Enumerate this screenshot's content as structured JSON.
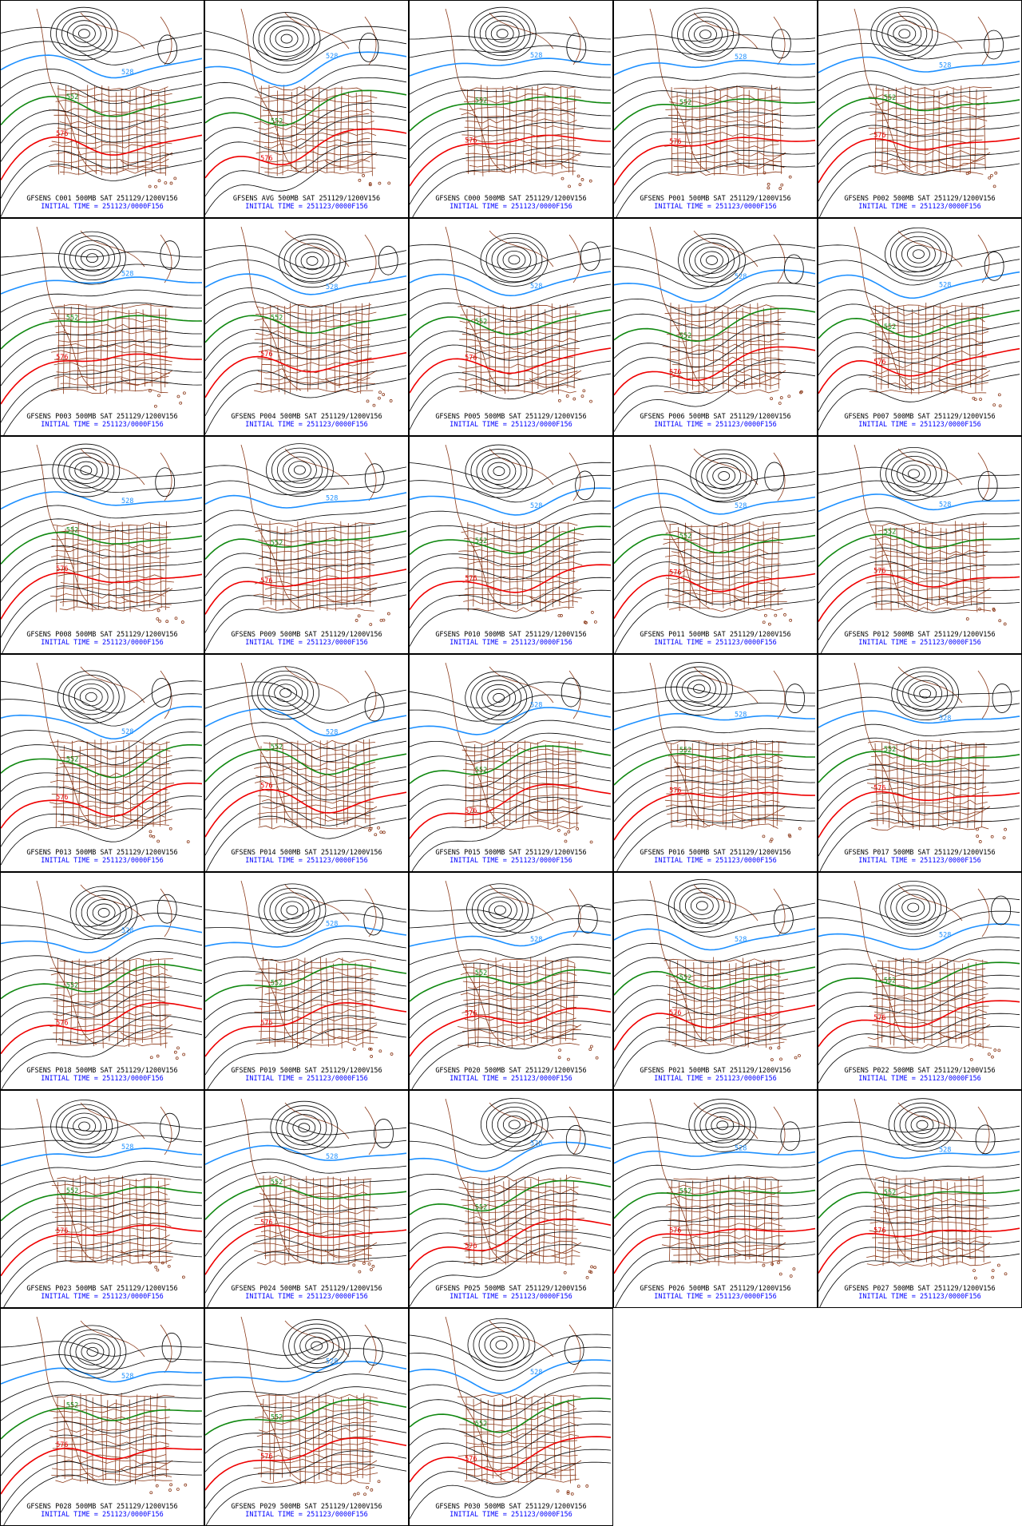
{
  "panels": [
    {
      "label": "GFSENS C001 500MB SAT 251129/1200V156",
      "init": "INITIAL TIME = 251123/0000F156",
      "contour_labels": [
        "528",
        "552",
        "576"
      ]
    },
    {
      "label": "GFSENS AVG 500MB SAT 251129/1200V156",
      "init": "INITIAL TIME = 251123/0000F156",
      "contour_labels": [
        "528",
        "552",
        "576"
      ]
    },
    {
      "label": "GFSENS C000 500MB SAT 251129/1200V156",
      "init": "INITIAL TIME = 251123/0000F156",
      "contour_labels": [
        "528",
        "552",
        "576"
      ]
    },
    {
      "label": "GFSENS P001 500MB SAT 251129/1200V156",
      "init": "INITIAL TIME = 251123/0000F156",
      "contour_labels": [
        "528",
        "552",
        "576"
      ]
    },
    {
      "label": "GFSENS P002 500MB SAT 251129/1200V156",
      "init": "INITIAL TIME = 251123/0000F156",
      "contour_labels": [
        "528",
        "552",
        "576"
      ]
    },
    {
      "label": "GFSENS P003 500MB SAT 251129/1200V156",
      "init": "INITIAL TIME = 251123/0000F156",
      "contour_labels": [
        "528",
        "552",
        "576"
      ]
    },
    {
      "label": "GFSENS P004 500MB SAT 251129/1200V156",
      "init": "INITIAL TIME = 251123/0000F156",
      "contour_labels": [
        "528",
        "552",
        "576"
      ]
    },
    {
      "label": "GFSENS P005 500MB SAT 251129/1200V156",
      "init": "INITIAL TIME = 251123/0000F156",
      "contour_labels": [
        "528",
        "552",
        "576"
      ]
    },
    {
      "label": "GFSENS P006 500MB SAT 251129/1200V156",
      "init": "INITIAL TIME = 251123/0000F156",
      "contour_labels": [
        "528",
        "552",
        "576"
      ]
    },
    {
      "label": "GFSENS P007 500MB SAT 251129/1200V156",
      "init": "INITIAL TIME = 251123/0000F156",
      "contour_labels": [
        "528",
        "552",
        "576"
      ]
    },
    {
      "label": "GFSENS P008 500MB SAT 251129/1200V156",
      "init": "INITIAL TIME = 251123/0000F156",
      "contour_labels": [
        "528",
        "552",
        "576"
      ]
    },
    {
      "label": "GFSENS P009 500MB SAT 251129/1200V156",
      "init": "INITIAL TIME = 251123/0000F156",
      "contour_labels": [
        "528",
        "552",
        "576"
      ]
    },
    {
      "label": "GFSENS P010 500MB SAT 251129/1200V156",
      "init": "INITIAL TIME = 251123/0000F156",
      "contour_labels": [
        "528",
        "552",
        "576"
      ]
    },
    {
      "label": "GFSENS P011 500MB SAT 251129/1200V156",
      "init": "INITIAL TIME = 251123/0000F156",
      "contour_labels": [
        "528",
        "552",
        "576"
      ]
    },
    {
      "label": "GFSENS P012 500MB SAT 251129/1200V156",
      "init": "INITIAL TIME = 251123/0000F156",
      "contour_labels": [
        "528",
        "552",
        "576"
      ]
    },
    {
      "label": "GFSENS P013 500MB SAT 251129/1200V156",
      "init": "INITIAL TIME = 251123/0000F156",
      "contour_labels": [
        "528",
        "552",
        "576"
      ]
    },
    {
      "label": "GFSENS P014 500MB SAT 251129/1200V156",
      "init": "INITIAL TIME = 251123/0000F156",
      "contour_labels": [
        "528",
        "552",
        "576"
      ]
    },
    {
      "label": "GFSENS P015 500MB SAT 251129/1200V156",
      "init": "INITIAL TIME = 251123/0000F156",
      "contour_labels": [
        "528",
        "552",
        "576"
      ]
    },
    {
      "label": "GFSENS P016 500MB SAT 251129/1200V156",
      "init": "INITIAL TIME = 251123/0000F156",
      "contour_labels": [
        "528",
        "552",
        "576"
      ]
    },
    {
      "label": "GFSENS P017 500MB SAT 251129/1200V156",
      "init": "INITIAL TIME = 251123/0000F156",
      "contour_labels": [
        "528",
        "552",
        "576"
      ]
    },
    {
      "label": "GFSENS P018 500MB SAT 251129/1200V156",
      "init": "INITIAL TIME = 251123/0000F156",
      "contour_labels": [
        "528",
        "552",
        "576"
      ]
    },
    {
      "label": "GFSENS P019 500MB SAT 251129/1200V156",
      "init": "INITIAL TIME = 251123/0000F156",
      "contour_labels": [
        "528",
        "552",
        "576"
      ]
    },
    {
      "label": "GFSENS P020 500MB SAT 251129/1200V156",
      "init": "INITIAL TIME = 251123/0000F156",
      "contour_labels": [
        "528",
        "552",
        "576"
      ]
    },
    {
      "label": "GFSENS P021 500MB SAT 251129/1200V156",
      "init": "INITIAL TIME = 251123/0000F156",
      "contour_labels": [
        "528",
        "552",
        "576"
      ]
    },
    {
      "label": "GFSENS P022 500MB SAT 251129/1200V156",
      "init": "INITIAL TIME = 251123/0000F156",
      "contour_labels": [
        "528",
        "552",
        "576"
      ]
    },
    {
      "label": "GFSENS P023 500MB SAT 251129/1200V156",
      "init": "INITIAL TIME = 251123/0000F156",
      "contour_labels": [
        "528",
        "552",
        "576"
      ]
    },
    {
      "label": "GFSENS P024 500MB SAT 251129/1200V156",
      "init": "INITIAL TIME = 251123/0000F156",
      "contour_labels": [
        "528",
        "552",
        "576"
      ]
    },
    {
      "label": "GFSENS P025 500MB SAT 251129/1200V156",
      "init": "INITIAL TIME = 251123/0000F156",
      "contour_labels": [
        "528",
        "552",
        "576"
      ]
    },
    {
      "label": "GFSENS P026 500MB SAT 251129/1200V156",
      "init": "INITIAL TIME = 251123/0000F156",
      "contour_labels": [
        "528",
        "552",
        "576"
      ]
    },
    {
      "label": "GFSENS P027 500MB SAT 251129/1200V156",
      "init": "INITIAL TIME = 251123/0000F156",
      "contour_labels": [
        "528",
        "552",
        "576"
      ]
    },
    {
      "label": "GFSENS P028 500MB SAT 251129/1200V156",
      "init": "INITIAL TIME = 251123/0000F156",
      "contour_labels": [
        "528",
        "552",
        "576"
      ]
    },
    {
      "label": "GFSENS P029 500MB SAT 251129/1200V156",
      "init": "INITIAL TIME = 251123/0000F156",
      "contour_labels": [
        "528",
        "552",
        "576"
      ]
    },
    {
      "label": "GFSENS P030 500MB SAT 251129/1200V156",
      "init": "INITIAL TIME = 251123/0000F156",
      "contour_labels": [
        "528",
        "552",
        "576"
      ]
    }
  ]
}
